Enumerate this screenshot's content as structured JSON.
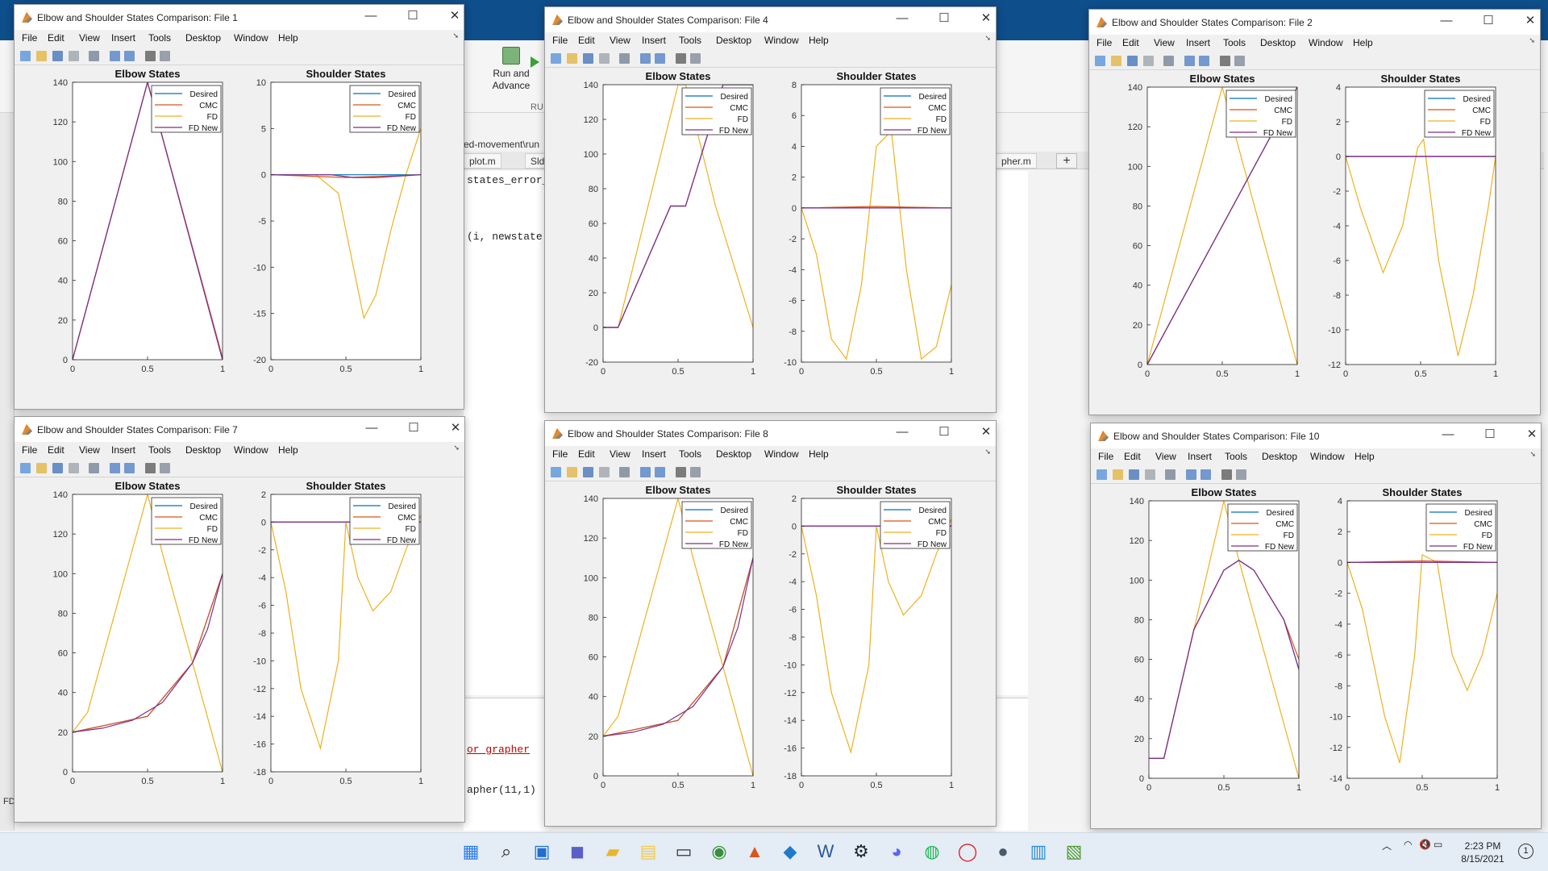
{
  "background": {
    "ribbon_run_advance": "Run and\nAdvance",
    "ribbon_tag": "RU",
    "editor_path": "ed-movement\\run",
    "editor_tabs": [
      "plot.m",
      "Slda",
      "pher.m"
    ],
    "code_lines": [
      "states_error_",
      "(i, newstate",
      "or_grapher",
      "apher(11,1)"
    ],
    "bottom_left_label": "FD"
  },
  "taskbar": {
    "apps": [
      "start-icon",
      "search-icon",
      "task-view-icon",
      "teams-chat-icon",
      "file-explorer-icon",
      "notepad-files-icon",
      "terminal-icon",
      "chrome-icon",
      "matlab-icon",
      "vscode-icon",
      "word-icon",
      "steam-icon",
      "discord-icon",
      "spotify-icon",
      "opera-icon",
      "autohotkey-icon",
      "notes-icon",
      "matlab-editor-icon"
    ],
    "time": "2:23 PM",
    "date": "8/15/2021",
    "notification_count": "1"
  },
  "figure_menu": [
    "File",
    "Edit",
    "View",
    "Insert",
    "Tools",
    "Desktop",
    "Window",
    "Help"
  ],
  "legend_labels": [
    "Desired",
    "CMC",
    "FD",
    "FD New"
  ],
  "colors": {
    "Desired": "#0072bd",
    "CMC": "#d95319",
    "FD": "#edb120",
    "FD New": "#7e2f8e"
  },
  "figures": [
    {
      "title": "Elbow and Shoulder States Comparison: File  1"
    },
    {
      "title": "Elbow and Shoulder States Comparison: File  4"
    },
    {
      "title": "Elbow and Shoulder States Comparison: File  2"
    },
    {
      "title": "Elbow and Shoulder States Comparison: File  7"
    },
    {
      "title": "Elbow and Shoulder States Comparison: File  8"
    },
    {
      "title": "Elbow and Shoulder States Comparison: File  10"
    }
  ],
  "chart_data": [
    {
      "figure": "File 1",
      "title": "Elbow States",
      "type": "line",
      "xlim": [
        0,
        1
      ],
      "ylim": [
        0,
        140
      ],
      "xticks": [
        "0",
        "0.5",
        "1"
      ],
      "yticks": [
        "0",
        "20",
        "40",
        "60",
        "80",
        "100",
        "120",
        "140"
      ],
      "legend_position": "top-right",
      "series": [
        {
          "name": "Desired",
          "x": [
            0,
            0.5,
            1
          ],
          "y": [
            0,
            140,
            0
          ]
        },
        {
          "name": "CMC",
          "x": [
            0,
            0.5,
            1
          ],
          "y": [
            0,
            140,
            1
          ]
        },
        {
          "name": "FD",
          "x": [
            0,
            0.5,
            1
          ],
          "y": [
            0,
            140,
            0
          ]
        },
        {
          "name": "FD New",
          "x": [
            0,
            0.5,
            1
          ],
          "y": [
            0,
            140,
            0
          ]
        }
      ]
    },
    {
      "figure": "File 1",
      "title": "Shoulder States",
      "type": "line",
      "xlim": [
        0,
        1
      ],
      "ylim": [
        -20,
        10
      ],
      "xticks": [
        "0",
        "0.5",
        "1"
      ],
      "yticks": [
        "-20",
        "-15",
        "-10",
        "-5",
        "0",
        "5",
        "10"
      ],
      "legend_position": "top-right",
      "series": [
        {
          "name": "Desired",
          "x": [
            0,
            1
          ],
          "y": [
            0,
            0
          ]
        },
        {
          "name": "CMC",
          "x": [
            0,
            0.5,
            1
          ],
          "y": [
            0,
            -0.3,
            0
          ]
        },
        {
          "name": "FD",
          "x": [
            0,
            0.3,
            0.45,
            0.55,
            0.62,
            0.7,
            0.8,
            0.9,
            1
          ],
          "y": [
            0,
            0,
            -2,
            -10,
            -15.5,
            -13,
            -6,
            0,
            5
          ]
        },
        {
          "name": "FD New",
          "x": [
            0,
            0.4,
            0.55,
            0.7,
            1
          ],
          "y": [
            0,
            0,
            -0.3,
            -0.3,
            0
          ]
        }
      ]
    },
    {
      "figure": "File 4",
      "title": "Elbow States",
      "type": "line",
      "xlim": [
        0,
        1
      ],
      "ylim": [
        -20,
        140
      ],
      "xticks": [
        "0",
        "0.5",
        "1"
      ],
      "yticks": [
        "-20",
        "0",
        "20",
        "40",
        "60",
        "80",
        "100",
        "120",
        "140"
      ],
      "legend_position": "top-right",
      "series": [
        {
          "name": "Desired",
          "x": [
            0,
            0.1,
            0.45,
            0.55,
            0.8,
            0.82,
            1
          ],
          "y": [
            0,
            0,
            70,
            70,
            140,
            140,
            140
          ]
        },
        {
          "name": "CMC",
          "x": [
            0,
            0.1,
            0.45,
            0.55,
            0.8,
            1
          ],
          "y": [
            0,
            0,
            70,
            70,
            140,
            140
          ]
        },
        {
          "name": "FD",
          "x": [
            0,
            0.1,
            0.5,
            0.55,
            0.75,
            1
          ],
          "y": [
            0,
            0,
            140,
            140,
            70,
            0
          ]
        },
        {
          "name": "FD New",
          "x": [
            0,
            0.1,
            0.45,
            0.55,
            0.8,
            1
          ],
          "y": [
            0,
            0,
            70,
            70,
            140,
            140
          ]
        }
      ]
    },
    {
      "figure": "File 4",
      "title": "Shoulder States",
      "type": "line",
      "xlim": [
        0,
        1
      ],
      "ylim": [
        -10,
        8
      ],
      "xticks": [
        "0",
        "0.5",
        "1"
      ],
      "yticks": [
        "-10",
        "-8",
        "-6",
        "-4",
        "-2",
        "0",
        "2",
        "4",
        "6",
        "8"
      ],
      "legend_position": "top-right",
      "series": [
        {
          "name": "Desired",
          "x": [
            0,
            1
          ],
          "y": [
            0,
            0
          ]
        },
        {
          "name": "CMC",
          "x": [
            0,
            0.5,
            1
          ],
          "y": [
            0,
            0.1,
            0
          ]
        },
        {
          "name": "FD",
          "x": [
            0,
            0.1,
            0.2,
            0.3,
            0.4,
            0.5,
            0.6,
            0.7,
            0.8,
            0.9,
            1
          ],
          "y": [
            0,
            -3,
            -8.5,
            -9.8,
            -5,
            4,
            5,
            -4,
            -9.8,
            -9,
            -5
          ]
        },
        {
          "name": "FD New",
          "x": [
            0,
            1
          ],
          "y": [
            0,
            0
          ]
        }
      ]
    },
    {
      "figure": "File 2",
      "title": "Elbow States",
      "type": "line",
      "xlim": [
        0,
        1
      ],
      "ylim": [
        0,
        140
      ],
      "xticks": [
        "0",
        "0.5",
        "1"
      ],
      "yticks": [
        "0",
        "20",
        "40",
        "60",
        "80",
        "100",
        "120",
        "140"
      ],
      "legend_position": "top-right",
      "series": [
        {
          "name": "Desired",
          "x": [
            0,
            1
          ],
          "y": [
            0,
            140
          ]
        },
        {
          "name": "CMC",
          "x": [
            0,
            1
          ],
          "y": [
            0,
            140
          ]
        },
        {
          "name": "FD",
          "x": [
            0,
            0.5,
            1
          ],
          "y": [
            0,
            140,
            0
          ]
        },
        {
          "name": "FD New",
          "x": [
            0,
            1
          ],
          "y": [
            0,
            140
          ]
        }
      ]
    },
    {
      "figure": "File 2",
      "title": "Shoulder States",
      "type": "line",
      "xlim": [
        0,
        1
      ],
      "ylim": [
        -12,
        4
      ],
      "xticks": [
        "0",
        "0.5",
        "1"
      ],
      "yticks": [
        "-12",
        "-10",
        "-8",
        "-6",
        "-4",
        "-2",
        "0",
        "2",
        "4"
      ],
      "legend_position": "top-right",
      "series": [
        {
          "name": "Desired",
          "x": [
            0,
            1
          ],
          "y": [
            0,
            0
          ]
        },
        {
          "name": "CMC",
          "x": [
            0,
            1
          ],
          "y": [
            0,
            0
          ]
        },
        {
          "name": "FD",
          "x": [
            0,
            0.1,
            0.25,
            0.38,
            0.48,
            0.52,
            0.62,
            0.75,
            0.85,
            0.95,
            1
          ],
          "y": [
            0,
            -3,
            -6.7,
            -4,
            0.5,
            1,
            -6,
            -11.5,
            -8,
            -3,
            0
          ]
        },
        {
          "name": "FD New",
          "x": [
            0,
            1
          ],
          "y": [
            0,
            0
          ]
        }
      ]
    },
    {
      "figure": "File 7",
      "title": "Elbow States",
      "type": "line",
      "xlim": [
        0,
        1
      ],
      "ylim": [
        0,
        140
      ],
      "xticks": [
        "0",
        "0.5",
        "1"
      ],
      "yticks": [
        "0",
        "20",
        "40",
        "60",
        "80",
        "100",
        "120",
        "140"
      ],
      "legend_position": "top-right",
      "series": [
        {
          "name": "Desired",
          "x": [
            0,
            0.5,
            0.8,
            1
          ],
          "y": [
            20,
            28,
            55,
            100
          ]
        },
        {
          "name": "CMC",
          "x": [
            0,
            0.5,
            0.8,
            1
          ],
          "y": [
            20,
            28,
            55,
            100
          ]
        },
        {
          "name": "FD",
          "x": [
            0,
            0.1,
            0.5,
            0.6,
            1
          ],
          "y": [
            20,
            30,
            140,
            110,
            0
          ]
        },
        {
          "name": "FD New",
          "x": [
            0,
            0.2,
            0.4,
            0.6,
            0.8,
            0.9,
            1
          ],
          "y": [
            20,
            22,
            26,
            35,
            55,
            72,
            100
          ]
        }
      ]
    },
    {
      "figure": "File 7",
      "title": "Shoulder States",
      "type": "line",
      "xlim": [
        0,
        1
      ],
      "ylim": [
        -18,
        2
      ],
      "xticks": [
        "0",
        "0.5",
        "1"
      ],
      "yticks": [
        "-18",
        "-16",
        "-14",
        "-12",
        "-10",
        "-8",
        "-6",
        "-4",
        "-2",
        "0",
        "2"
      ],
      "legend_position": "top-right",
      "series": [
        {
          "name": "Desired",
          "x": [
            0,
            1
          ],
          "y": [
            0,
            0
          ]
        },
        {
          "name": "CMC",
          "x": [
            0,
            1
          ],
          "y": [
            0,
            0
          ]
        },
        {
          "name": "FD",
          "x": [
            0,
            0.1,
            0.2,
            0.33,
            0.45,
            0.5,
            0.58,
            0.68,
            0.8,
            0.9,
            1
          ],
          "y": [
            0,
            -5,
            -12,
            -16.3,
            -10,
            0,
            -4,
            -6.4,
            -5,
            -2,
            0.5
          ]
        },
        {
          "name": "FD New",
          "x": [
            0,
            1
          ],
          "y": [
            0,
            0
          ]
        }
      ]
    },
    {
      "figure": "File 8",
      "title": "Elbow States",
      "type": "line",
      "xlim": [
        0,
        1
      ],
      "ylim": [
        0,
        140
      ],
      "xticks": [
        "0",
        "0.5",
        "1"
      ],
      "yticks": [
        "0",
        "20",
        "40",
        "60",
        "80",
        "100",
        "120",
        "140"
      ],
      "legend_position": "top-right",
      "series": [
        {
          "name": "Desired",
          "x": [
            0,
            0.5,
            0.8,
            1
          ],
          "y": [
            20,
            28,
            55,
            110
          ]
        },
        {
          "name": "CMC",
          "x": [
            0,
            0.5,
            0.8,
            1
          ],
          "y": [
            20,
            28,
            55,
            110
          ]
        },
        {
          "name": "FD",
          "x": [
            0,
            0.1,
            0.5,
            0.6,
            1
          ],
          "y": [
            20,
            30,
            140,
            110,
            0
          ]
        },
        {
          "name": "FD New",
          "x": [
            0,
            0.2,
            0.4,
            0.6,
            0.8,
            0.9,
            1
          ],
          "y": [
            20,
            22,
            26,
            35,
            55,
            75,
            110
          ]
        }
      ]
    },
    {
      "figure": "File 8",
      "title": "Shoulder States",
      "type": "line",
      "xlim": [
        0,
        1
      ],
      "ylim": [
        -18,
        2
      ],
      "xticks": [
        "0",
        "0.5",
        "1"
      ],
      "yticks": [
        "-18",
        "-16",
        "-14",
        "-12",
        "-10",
        "-8",
        "-6",
        "-4",
        "-2",
        "0",
        "2"
      ],
      "legend_position": "top-right",
      "series": [
        {
          "name": "Desired",
          "x": [
            0,
            1
          ],
          "y": [
            0,
            0
          ]
        },
        {
          "name": "CMC",
          "x": [
            0,
            1
          ],
          "y": [
            0,
            0
          ]
        },
        {
          "name": "FD",
          "x": [
            0,
            0.1,
            0.2,
            0.33,
            0.45,
            0.5,
            0.58,
            0.68,
            0.8,
            0.9,
            1
          ],
          "y": [
            0,
            -5,
            -12,
            -16.3,
            -10,
            0,
            -4,
            -6.4,
            -5,
            -2,
            0.5
          ]
        },
        {
          "name": "FD New",
          "x": [
            0,
            1
          ],
          "y": [
            0,
            0
          ]
        }
      ]
    },
    {
      "figure": "File 10",
      "title": "Elbow States",
      "type": "line",
      "xlim": [
        0,
        1
      ],
      "ylim": [
        0,
        140
      ],
      "xticks": [
        "0",
        "0.5",
        "1"
      ],
      "yticks": [
        "0",
        "20",
        "40",
        "60",
        "80",
        "100",
        "120",
        "140"
      ],
      "legend_position": "top-right",
      "series": [
        {
          "name": "Desired",
          "x": [
            0,
            0.1,
            0.3,
            0.5,
            0.6,
            0.7,
            0.9,
            1
          ],
          "y": [
            10,
            10,
            75,
            105,
            110,
            105,
            80,
            55
          ]
        },
        {
          "name": "CMC",
          "x": [
            0,
            0.1,
            0.3,
            0.5,
            0.6,
            0.7,
            0.9,
            1
          ],
          "y": [
            10,
            10,
            75,
            105,
            110,
            105,
            80,
            60
          ]
        },
        {
          "name": "FD",
          "x": [
            0,
            0.1,
            0.5,
            0.6,
            1
          ],
          "y": [
            10,
            10,
            140,
            110,
            0
          ]
        },
        {
          "name": "FD New",
          "x": [
            0,
            0.1,
            0.3,
            0.5,
            0.6,
            0.7,
            0.9,
            1
          ],
          "y": [
            10,
            10,
            75,
            105,
            110,
            105,
            80,
            55
          ]
        }
      ]
    },
    {
      "figure": "File 10",
      "title": "Shoulder States",
      "type": "line",
      "xlim": [
        0,
        1
      ],
      "ylim": [
        -14,
        4
      ],
      "xticks": [
        "0",
        "0.5",
        "1"
      ],
      "yticks": [
        "-14",
        "-12",
        "-10",
        "-8",
        "-6",
        "-4",
        "-2",
        "0",
        "2",
        "4"
      ],
      "legend_position": "top-right",
      "series": [
        {
          "name": "Desired",
          "x": [
            0,
            1
          ],
          "y": [
            0,
            0
          ]
        },
        {
          "name": "CMC",
          "x": [
            0,
            0.5,
            1
          ],
          "y": [
            0,
            0.1,
            0
          ]
        },
        {
          "name": "FD",
          "x": [
            0,
            0.1,
            0.25,
            0.35,
            0.45,
            0.5,
            0.6,
            0.7,
            0.8,
            0.9,
            1
          ],
          "y": [
            0,
            -3,
            -10,
            -13,
            -6,
            0.5,
            0,
            -6,
            -8.3,
            -6,
            -2
          ]
        },
        {
          "name": "FD New",
          "x": [
            0,
            1
          ],
          "y": [
            0,
            0
          ]
        }
      ]
    }
  ]
}
